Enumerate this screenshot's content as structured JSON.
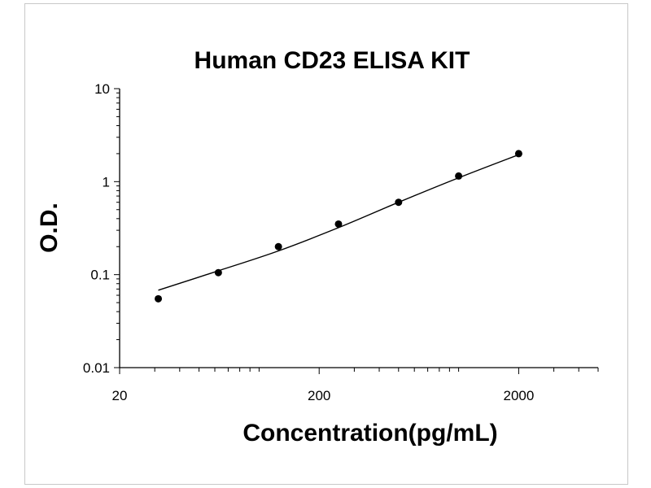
{
  "chart_data": {
    "type": "scatter",
    "title": "Human CD23 ELISA KIT",
    "xlabel": "Concentration(pg/mL)",
    "ylabel": "O.D.",
    "x_scale": "log",
    "y_scale": "log",
    "xlim": [
      20,
      5000
    ],
    "ylim": [
      0.01,
      10
    ],
    "x_ticks": [
      "20",
      "200",
      "2000"
    ],
    "y_ticks": [
      "10",
      "1",
      "0.1",
      "0.01"
    ],
    "grid": false,
    "legend": "none",
    "series": [
      {
        "mode": "markers",
        "x": [
          31.25,
          62.5,
          125,
          250,
          500,
          1000,
          2000
        ],
        "y": [
          0.055,
          0.105,
          0.2,
          0.35,
          0.6,
          1.15,
          2.0
        ]
      },
      {
        "mode": "line",
        "x": [
          31.25,
          62.5,
          125,
          250,
          500,
          1000,
          2000
        ],
        "y": [
          0.068,
          0.11,
          0.18,
          0.32,
          0.6,
          1.1,
          1.95
        ]
      }
    ],
    "colors": {
      "marker": "#000000",
      "line": "#000000",
      "axis": "#000000"
    }
  }
}
